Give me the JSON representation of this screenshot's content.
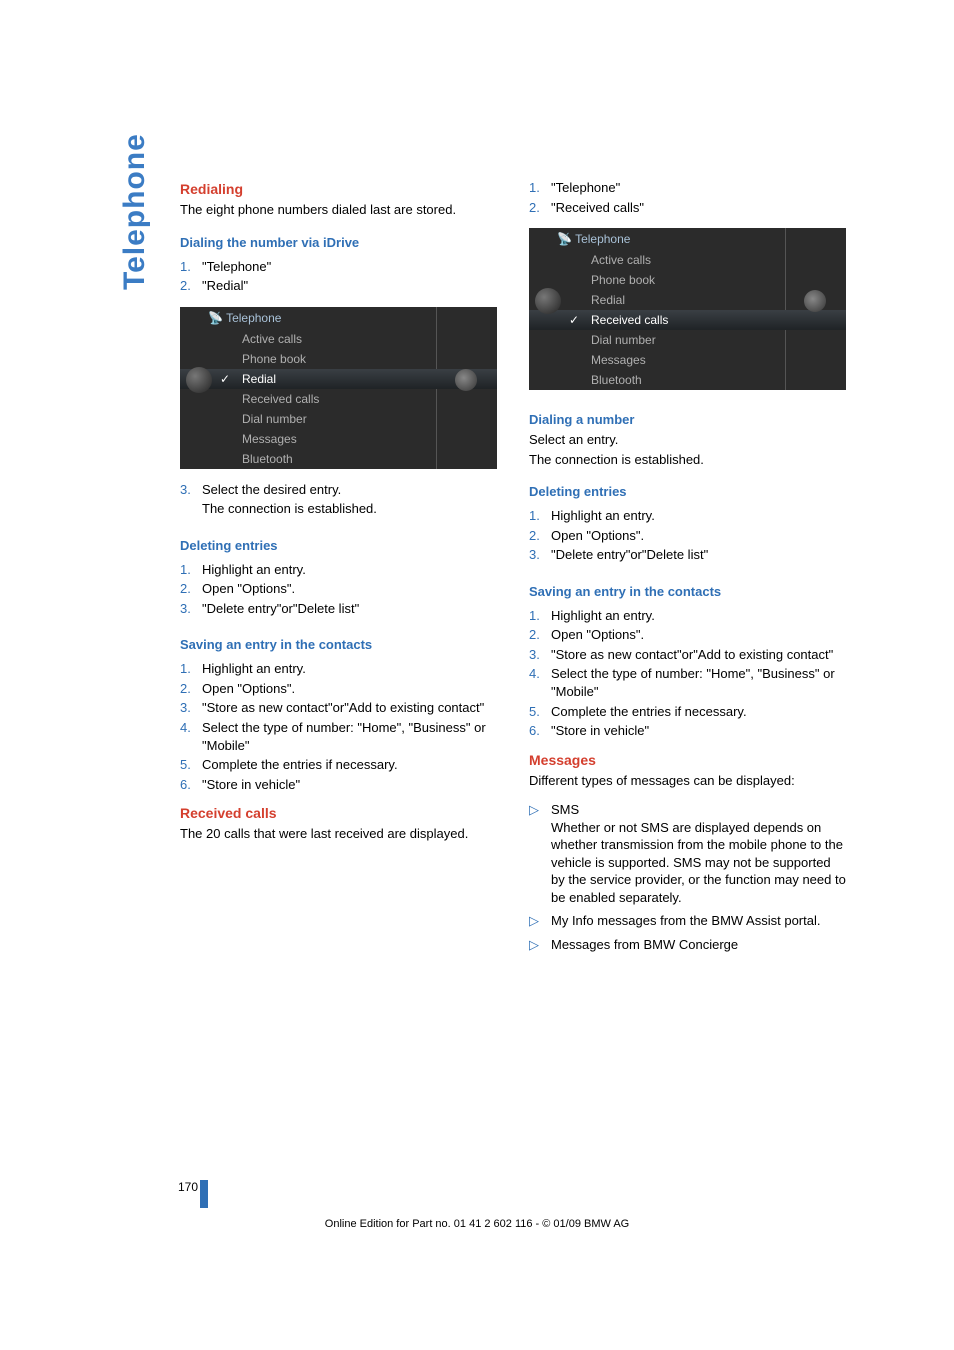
{
  "side_tab": "Telephone",
  "left": {
    "redialing": {
      "title": "Redialing",
      "intro": "The eight phone numbers dialed last are stored."
    },
    "dial_idrive": {
      "title": "Dialing the number via iDrive",
      "step1": "\"Telephone\"",
      "step2": "\"Redial\""
    },
    "idrive1": {
      "title": "Telephone",
      "items": [
        "Active calls",
        "Phone book",
        "Redial",
        "Received calls",
        "Dial number",
        "Messages",
        "Bluetooth"
      ],
      "selected_index": 2
    },
    "after_idrive_step3": "Select the desired entry.",
    "after_idrive_step3b": "The connection is established.",
    "del": {
      "title": "Deleting entries",
      "s1": "Highlight an entry.",
      "s2": "Open \"Options\".",
      "s3": "\"Delete entry\"or\"Delete list\""
    },
    "save": {
      "title": "Saving an entry in the contacts",
      "s1": "Highlight an entry.",
      "s2": "Open \"Options\".",
      "s3": "\"Store as new contact\"or\"Add to existing contact\"",
      "s4": "Select the type of number: \"Home\", \"Business\" or \"Mobile\"",
      "s5": "Complete the entries if necessary.",
      "s6": "\"Store in vehicle\""
    },
    "received": {
      "title": "Received calls",
      "body": "The 20 calls that were last received are displayed."
    }
  },
  "right": {
    "top": {
      "s1": "\"Telephone\"",
      "s2": "\"Received calls\""
    },
    "idrive2": {
      "title": "Telephone",
      "items": [
        "Active calls",
        "Phone book",
        "Redial",
        "Received calls",
        "Dial number",
        "Messages",
        "Bluetooth"
      ],
      "selected_index": 3
    },
    "dialnum": {
      "title": "Dialing a number",
      "l1": "Select an entry.",
      "l2": "The connection is established."
    },
    "del": {
      "title": "Deleting entries",
      "s1": "Highlight an entry.",
      "s2": "Open \"Options\".",
      "s3": "\"Delete entry\"or\"Delete list\""
    },
    "save": {
      "title": "Saving an entry in the contacts",
      "s1": "Highlight an entry.",
      "s2": "Open \"Options\".",
      "s3": "\"Store as new contact\"or\"Add to existing contact\"",
      "s4": "Select the type of number: \"Home\", \"Business\" or \"Mobile\"",
      "s5": "Complete the entries if necessary.",
      "s6": "\"Store in vehicle\""
    },
    "messages": {
      "title": "Messages",
      "intro": "Different types of messages can be displayed:",
      "b1_head": "SMS",
      "b1_body": "Whether or not SMS are displayed depends on whether transmission from the mobile phone to the vehicle is supported. SMS may not be supported by the service provider, or the function may need to be enabled separately.",
      "b2": "My Info messages from the BMW Assist portal.",
      "b3": "Messages from BMW Concierge"
    }
  },
  "footer": {
    "pagenum": "170",
    "copy": "Online Edition for Part no. 01 41 2 602 116 - © 01/09 BMW AG"
  },
  "style": {
    "red": "#d43f2e",
    "blue": "#2f6fb5",
    "side_blue": "#3b7cc4"
  }
}
